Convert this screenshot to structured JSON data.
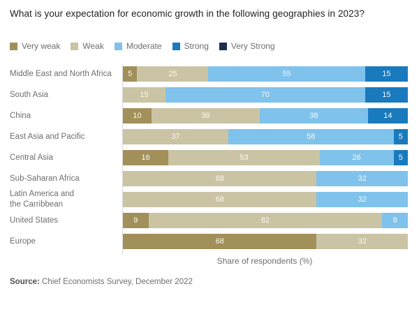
{
  "title": "What is your expectation for economic growth in the following geographies in 2023?",
  "xlabel": "Share of respondents (%)",
  "source": {
    "label": "Source:",
    "text": " Chief Economists Survey, December 2022"
  },
  "colors": {
    "very_weak": "#a2905a",
    "weak": "#cac4a4",
    "moderate": "#7fc2ec",
    "strong": "#1a7abe",
    "very_strong": "#1e2d52",
    "axis_line": "#d9d9d9",
    "value_label": "#fbfaf3"
  },
  "chart_data": {
    "type": "bar",
    "orientation": "horizontal-stacked",
    "title": "What is your expectation for economic growth in the following geographies in 2023?",
    "xlabel": "Share of respondents (%)",
    "xlim": [
      0,
      100
    ],
    "grid": false,
    "legend_position": "top",
    "legend": [
      {
        "label": "Very weak",
        "color": "#a2905a"
      },
      {
        "label": "Weak",
        "color": "#cac4a4"
      },
      {
        "label": "Moderate",
        "color": "#7fc2ec"
      },
      {
        "label": "Strong",
        "color": "#1a7abe"
      },
      {
        "label": "Very Strong",
        "color": "#1e2d52"
      }
    ],
    "rows": [
      {
        "label": "Middle East and North Africa",
        "segments": [
          {
            "level": "Very weak",
            "value": 5
          },
          {
            "level": "Weak",
            "value": 25
          },
          {
            "level": "Moderate",
            "value": 55
          },
          {
            "level": "Strong",
            "value": 15
          }
        ]
      },
      {
        "label": "South Asia",
        "segments": [
          {
            "level": "Weak",
            "value": 15
          },
          {
            "level": "Moderate",
            "value": 70
          },
          {
            "level": "Strong",
            "value": 15
          }
        ]
      },
      {
        "label": "China",
        "segments": [
          {
            "level": "Very weak",
            "value": 10
          },
          {
            "level": "Weak",
            "value": 38
          },
          {
            "level": "Moderate",
            "value": 38
          },
          {
            "level": "Strong",
            "value": 14
          }
        ]
      },
      {
        "label": "East Asia and Pacific",
        "segments": [
          {
            "level": "Weak",
            "value": 37
          },
          {
            "level": "Moderate",
            "value": 58
          },
          {
            "level": "Strong",
            "value": 5
          }
        ]
      },
      {
        "label": "Central Asia",
        "segments": [
          {
            "level": "Very weak",
            "value": 16
          },
          {
            "level": "Weak",
            "value": 53
          },
          {
            "level": "Moderate",
            "value": 26
          },
          {
            "level": "Strong",
            "value": 5
          }
        ]
      },
      {
        "label": "Sub-Saharan Africa",
        "segments": [
          {
            "level": "Weak",
            "value": 68
          },
          {
            "level": "Moderate",
            "value": 32
          }
        ]
      },
      {
        "label": "Latin America and\nthe Carribbean",
        "segments": [
          {
            "level": "Weak",
            "value": 68
          },
          {
            "level": "Moderate",
            "value": 32
          }
        ]
      },
      {
        "label": "United States",
        "segments": [
          {
            "level": "Very weak",
            "value": 9
          },
          {
            "level": "Weak",
            "value": 82
          },
          {
            "level": "Moderate",
            "value": 9
          }
        ]
      },
      {
        "label": "Europe",
        "segments": [
          {
            "level": "Very weak",
            "value": 68
          },
          {
            "level": "Weak",
            "value": 32
          }
        ]
      }
    ]
  }
}
